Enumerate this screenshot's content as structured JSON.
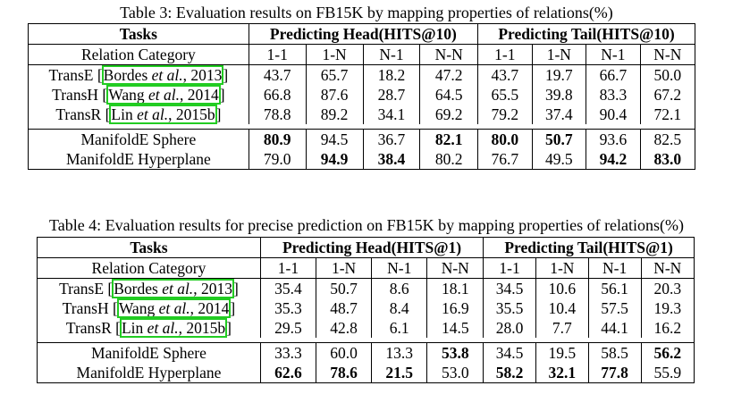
{
  "table3": {
    "caption": "Table 3: Evaluation results on FB15K by mapping properties of relations(%)",
    "header": {
      "tasks": "Tasks",
      "group_head": "Predicting Head(HITS@10)",
      "group_tail": "Predicting Tail(HITS@10)"
    },
    "subheader": {
      "category": "Relation Category",
      "cols": [
        "1-1",
        "1-N",
        "N-1",
        "N-N",
        "1-1",
        "1-N",
        "N-1",
        "N-N"
      ]
    },
    "rows": [
      {
        "model": "TransE",
        "bracket_open": "[",
        "cite_author": "Bordes",
        "cite_etal": "et al.",
        "cite_year": ", 2013",
        "bracket_close": "]",
        "values": [
          "43.7",
          "65.7",
          "18.2",
          "47.2",
          "43.7",
          "19.7",
          "66.7",
          "50.0"
        ],
        "bold": [
          false,
          false,
          false,
          false,
          false,
          false,
          false,
          false
        ]
      },
      {
        "model": "TransH",
        "bracket_open": "[",
        "cite_author": "Wang",
        "cite_etal": "et al.",
        "cite_year": ", 2014",
        "bracket_close": "]",
        "values": [
          "66.8",
          "87.6",
          "28.7",
          "64.5",
          "65.5",
          "39.8",
          "83.3",
          "67.2"
        ],
        "bold": [
          false,
          false,
          false,
          false,
          false,
          false,
          false,
          false
        ]
      },
      {
        "model": "TransR",
        "bracket_open": "[",
        "cite_author": "Lin",
        "cite_etal": "et al.",
        "cite_year": ", 2015b",
        "bracket_close": "]",
        "values": [
          "78.8",
          "89.2",
          "34.1",
          "69.2",
          "79.2",
          "37.4",
          "90.4",
          "72.1"
        ],
        "bold": [
          false,
          false,
          false,
          false,
          false,
          false,
          false,
          false
        ]
      },
      {
        "model": "ManifoldE Sphere",
        "values": [
          "80.9",
          "94.5",
          "36.7",
          "82.1",
          "80.0",
          "50.7",
          "93.6",
          "82.5"
        ],
        "bold": [
          true,
          false,
          false,
          true,
          true,
          true,
          false,
          false
        ]
      },
      {
        "model": "ManifoldE Hyperplane",
        "values": [
          "79.0",
          "94.9",
          "38.4",
          "80.2",
          "76.7",
          "49.5",
          "94.2",
          "83.0"
        ],
        "bold": [
          false,
          true,
          true,
          false,
          false,
          false,
          true,
          true
        ]
      }
    ]
  },
  "table4": {
    "caption": "Table 4: Evaluation results for precise prediction on FB15K by mapping properties of relations(%)",
    "header": {
      "tasks": "Tasks",
      "group_head": "Predicting Head(HITS@1)",
      "group_tail": "Predicting Tail(HITS@1)"
    },
    "subheader": {
      "category": "Relation Category",
      "cols": [
        "1-1",
        "1-N",
        "N-1",
        "N-N",
        "1-1",
        "1-N",
        "N-1",
        "N-N"
      ]
    },
    "rows": [
      {
        "model": "TransE",
        "bracket_open": "[",
        "cite_author": "Bordes",
        "cite_etal": "et al.",
        "cite_year": ", 2013",
        "bracket_close": "]",
        "values": [
          "35.4",
          "50.7",
          "8.6",
          "18.1",
          "34.5",
          "10.6",
          "56.1",
          "20.3"
        ],
        "bold": [
          false,
          false,
          false,
          false,
          false,
          false,
          false,
          false
        ]
      },
      {
        "model": "TransH",
        "bracket_open": "[",
        "cite_author": "Wang",
        "cite_etal": "et al.",
        "cite_year": ", 2014",
        "bracket_close": "]",
        "values": [
          "35.3",
          "48.7",
          "8.4",
          "16.9",
          "35.5",
          "10.4",
          "57.5",
          "19.3"
        ],
        "bold": [
          false,
          false,
          false,
          false,
          false,
          false,
          false,
          false
        ]
      },
      {
        "model": "TransR",
        "bracket_open": "[",
        "cite_author": "Lin",
        "cite_etal": "et al.",
        "cite_year": ", 2015b",
        "bracket_close": "]",
        "values": [
          "29.5",
          "42.8",
          "6.1",
          "14.5",
          "28.0",
          "7.7",
          "44.1",
          "16.2"
        ],
        "bold": [
          false,
          false,
          false,
          false,
          false,
          false,
          false,
          false
        ]
      },
      {
        "model": "ManifoldE Sphere",
        "values": [
          "33.3",
          "60.0",
          "13.3",
          "53.8",
          "34.5",
          "19.5",
          "58.5",
          "56.2"
        ],
        "bold": [
          false,
          false,
          false,
          true,
          false,
          false,
          false,
          true
        ]
      },
      {
        "model": "ManifoldE Hyperplane",
        "values": [
          "62.6",
          "78.6",
          "21.5",
          "53.0",
          "58.2",
          "32.1",
          "77.8",
          "55.9"
        ],
        "bold": [
          true,
          true,
          true,
          false,
          true,
          true,
          true,
          false
        ]
      }
    ]
  }
}
